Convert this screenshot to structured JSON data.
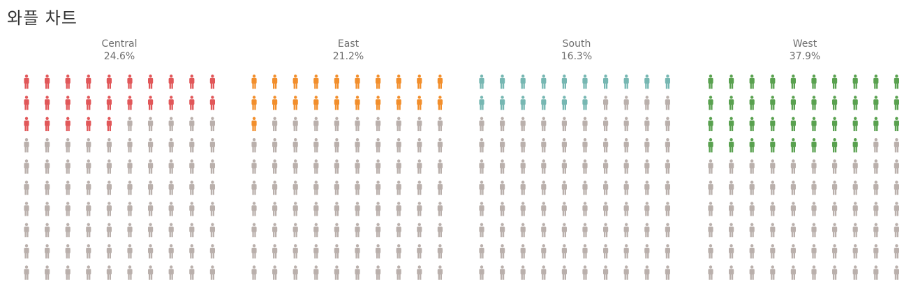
{
  "title": "와플 차트",
  "colors": {
    "inactive": "#bab0ac",
    "Central": "#e15759",
    "East": "#f28e2b",
    "South": "#76b7b2",
    "West": "#59a14f"
  },
  "icon": "person-icon",
  "chart_data": {
    "type": "waffle",
    "grid": {
      "rows": 10,
      "cols": 10
    },
    "fill_order": "row-major from top-left",
    "categories": [
      "Central",
      "East",
      "South",
      "West"
    ],
    "labels": [
      "24.6%",
      "21.2%",
      "16.3%",
      "37.9%"
    ],
    "values": [
      24.6,
      21.2,
      16.3,
      37.9
    ],
    "filled_icons": [
      25,
      21,
      16,
      38
    ]
  }
}
